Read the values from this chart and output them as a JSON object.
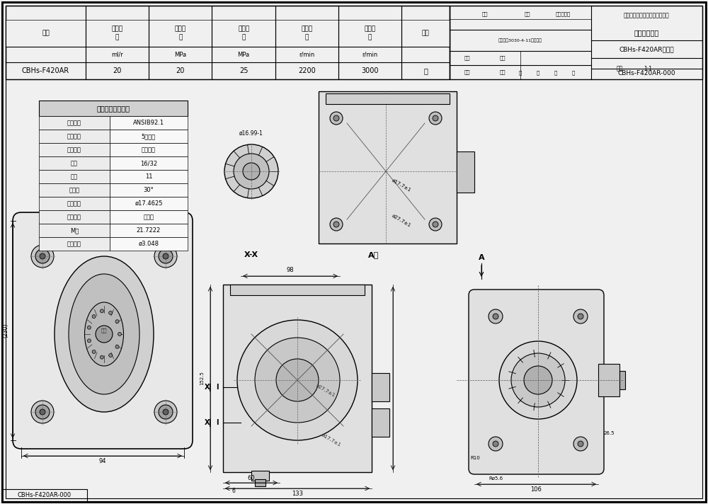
{
  "bg_color": "#f0f0f0",
  "border_color": "#000000",
  "title_box_text": "CBHs-F420AR-000",
  "drawing_title": "外连接尺寸图",
  "company": "滁州精普华威液压系统有限公司",
  "pump_model": "CBHs-F420AR齿轮泵",
  "doc_ref": "内部文义3030-4-11批准比佐",
  "scale": "1:1",
  "header_label": "CBHs-F420AR-000",
  "top_left_label": "CBHs-F420AR-000",
  "table_headers": [
    "型号",
    "额定排量",
    "额定压力",
    "最高压力",
    "额定转速",
    "最高转速",
    "旋向"
  ],
  "table_units": [
    "",
    "ml/r",
    "MPa",
    "MPa",
    "r/min",
    "r/min",
    ""
  ],
  "table_values": [
    "CBHs-F420AR",
    "20",
    "20",
    "25",
    "2200",
    "3000",
    "右"
  ],
  "spline_table_title": "渐开线花键参数表",
  "spline_params": [
    [
      "花键规格",
      "ANSIB92.1"
    ],
    [
      "精度等级",
      "5级精度"
    ],
    [
      "配合类型",
      "齿侧配合"
    ],
    [
      "径节",
      "16/32"
    ],
    [
      "齿数",
      "11"
    ],
    [
      "压力角",
      "30°"
    ],
    [
      "节圆直径",
      "ø17.4625"
    ],
    [
      "齿根形状",
      "平齿根"
    ],
    [
      "M值",
      "21.7222"
    ],
    [
      "测量直径",
      "ø3.048"
    ]
  ],
  "section_label": "X-X",
  "view_label": "A向"
}
